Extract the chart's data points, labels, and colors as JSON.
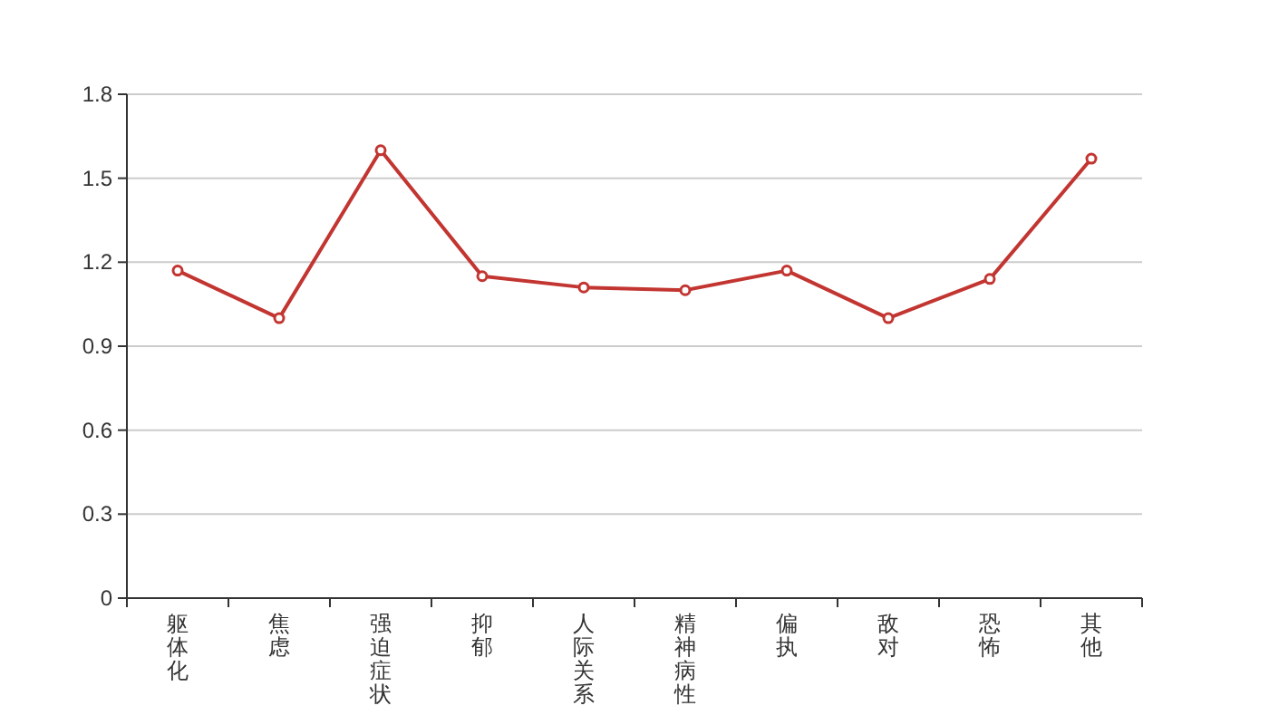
{
  "chart_data": {
    "type": "line",
    "categories": [
      "躯体化",
      "焦虑",
      "强迫症状",
      "抑郁",
      "人际关系",
      "精神病性",
      "偏执",
      "敌对",
      "恐怖",
      "其他"
    ],
    "series": [
      {
        "color": "#c23531",
        "values": [
          1.17,
          1.0,
          1.6,
          1.15,
          1.11,
          1.1,
          1.17,
          1.0,
          1.14,
          1.57
        ]
      }
    ],
    "ylim": [
      0,
      1.8
    ],
    "yticks": [
      0,
      0.3,
      0.6,
      0.9,
      1.2,
      1.5,
      1.8
    ],
    "grid": "y",
    "marker": "circle",
    "line_style": "solid"
  }
}
